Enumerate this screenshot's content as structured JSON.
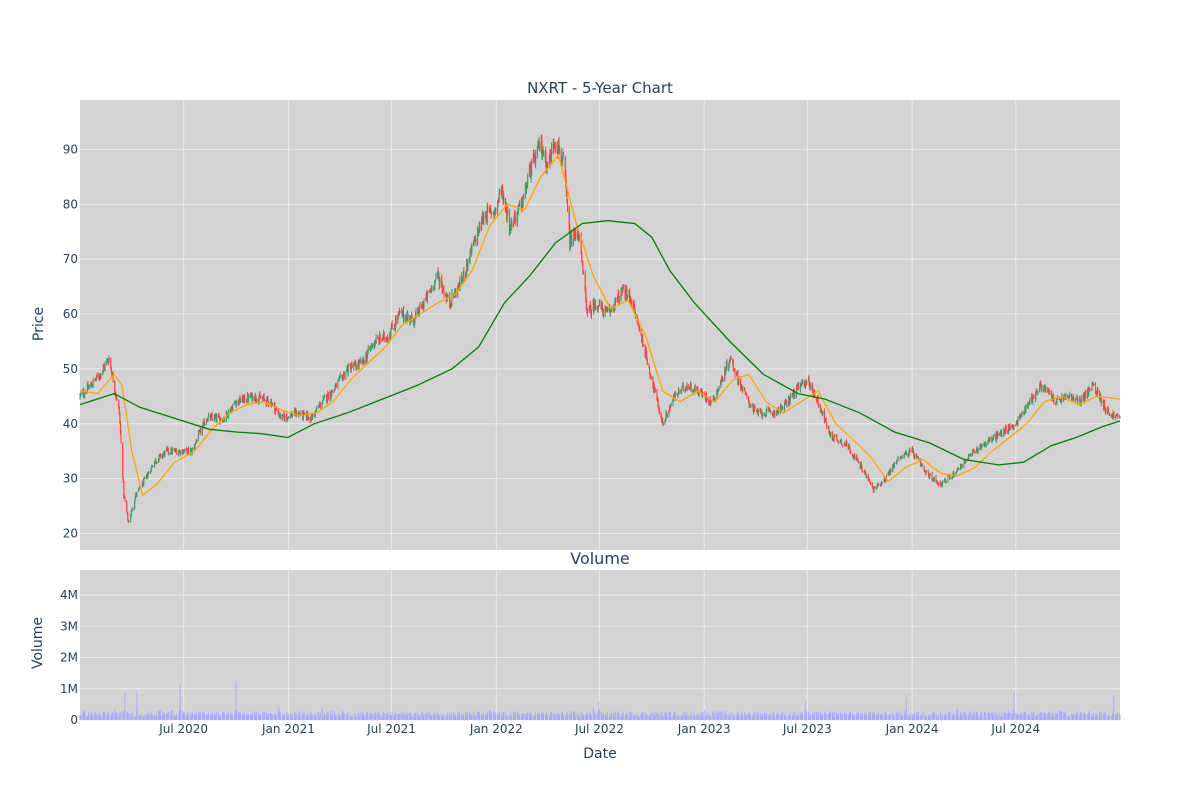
{
  "chart_data": [
    {
      "type": "candlestick",
      "title": "NXRT - 5-Year Chart",
      "ylabel": "Price",
      "ylim": [
        17,
        99
      ],
      "yticks": [
        20,
        30,
        40,
        50,
        60,
        70,
        80,
        90
      ],
      "x_range": [
        "2020-01-01",
        "2024-12-31"
      ],
      "xticks": [
        {
          "date": "2020-07-01",
          "label": "Jul 2020"
        },
        {
          "date": "2021-01-01",
          "label": "Jan 2021"
        },
        {
          "date": "2021-07-01",
          "label": "Jul 2021"
        },
        {
          "date": "2022-01-01",
          "label": "Jan 2022"
        },
        {
          "date": "2022-07-01",
          "label": "Jul 2022"
        },
        {
          "date": "2023-01-01",
          "label": "Jan 2023"
        },
        {
          "date": "2023-07-01",
          "label": "Jul 2023"
        },
        {
          "date": "2024-01-01",
          "label": "Jan 2024"
        },
        {
          "date": "2024-07-01",
          "label": "Jul 2024"
        }
      ],
      "close_path": [
        [
          "2020-01-01",
          45
        ],
        [
          "2020-01-20",
          47
        ],
        [
          "2020-02-05",
          49
        ],
        [
          "2020-02-21",
          52
        ],
        [
          "2020-03-01",
          47
        ],
        [
          "2020-03-10",
          42
        ],
        [
          "2020-03-18",
          27
        ],
        [
          "2020-03-26",
          22
        ],
        [
          "2020-04-08",
          27
        ],
        [
          "2020-04-25",
          30
        ],
        [
          "2020-05-10",
          33
        ],
        [
          "2020-06-01",
          35
        ],
        [
          "2020-06-25",
          35
        ],
        [
          "2020-07-15",
          35
        ],
        [
          "2020-08-10",
          41
        ],
        [
          "2020-09-10",
          41
        ],
        [
          "2020-10-01",
          44
        ],
        [
          "2020-11-01",
          45
        ],
        [
          "2020-12-01",
          44
        ],
        [
          "2020-12-20",
          41
        ],
        [
          "2021-01-15",
          42
        ],
        [
          "2021-02-10",
          41
        ],
        [
          "2021-03-01",
          44
        ],
        [
          "2021-03-20",
          46
        ],
        [
          "2021-04-15",
          50
        ],
        [
          "2021-05-10",
          51
        ],
        [
          "2021-06-01",
          55
        ],
        [
          "2021-06-25",
          56
        ],
        [
          "2021-07-15",
          60
        ],
        [
          "2021-08-10",
          59
        ],
        [
          "2021-09-01",
          63
        ],
        [
          "2021-09-20",
          67
        ],
        [
          "2021-10-10",
          62
        ],
        [
          "2021-11-01",
          66
        ],
        [
          "2021-11-20",
          72
        ],
        [
          "2021-12-10",
          78
        ],
        [
          "2021-12-31",
          79
        ],
        [
          "2022-01-10",
          83
        ],
        [
          "2022-01-25",
          76
        ],
        [
          "2022-02-15",
          80
        ],
        [
          "2022-03-01",
          86
        ],
        [
          "2022-03-20",
          91
        ],
        [
          "2022-04-01",
          87
        ],
        [
          "2022-04-15",
          92
        ],
        [
          "2022-04-30",
          87
        ],
        [
          "2022-05-10",
          73
        ],
        [
          "2022-05-25",
          75
        ],
        [
          "2022-06-10",
          60
        ],
        [
          "2022-06-25",
          62
        ],
        [
          "2022-07-15",
          60
        ],
        [
          "2022-08-10",
          64
        ],
        [
          "2022-08-25",
          63
        ],
        [
          "2022-09-15",
          55
        ],
        [
          "2022-10-01",
          48
        ],
        [
          "2022-10-20",
          40
        ],
        [
          "2022-11-10",
          45
        ],
        [
          "2022-12-01",
          47
        ],
        [
          "2022-12-20",
          46
        ],
        [
          "2023-01-15",
          44
        ],
        [
          "2023-02-01",
          48
        ],
        [
          "2023-02-15",
          52
        ],
        [
          "2023-03-10",
          46
        ],
        [
          "2023-04-01",
          42
        ],
        [
          "2023-05-01",
          42
        ],
        [
          "2023-05-20",
          43
        ],
        [
          "2023-06-10",
          46
        ],
        [
          "2023-07-01",
          48
        ],
        [
          "2023-07-20",
          44
        ],
        [
          "2023-08-10",
          38
        ],
        [
          "2023-09-10",
          36
        ],
        [
          "2023-10-10",
          31
        ],
        [
          "2023-10-25",
          28
        ],
        [
          "2023-11-15",
          30
        ],
        [
          "2023-12-10",
          34
        ],
        [
          "2024-01-01",
          35
        ],
        [
          "2024-01-25",
          31
        ],
        [
          "2024-02-20",
          29
        ],
        [
          "2024-03-15",
          31
        ],
        [
          "2024-04-10",
          34
        ],
        [
          "2024-05-01",
          36
        ],
        [
          "2024-06-01",
          38
        ],
        [
          "2024-07-01",
          40
        ],
        [
          "2024-07-25",
          44
        ],
        [
          "2024-08-15",
          47
        ],
        [
          "2024-09-10",
          44
        ],
        [
          "2024-10-01",
          45
        ],
        [
          "2024-10-20",
          44
        ],
        [
          "2024-11-15",
          47
        ],
        [
          "2024-12-10",
          42
        ],
        [
          "2024-12-31",
          41
        ]
      ],
      "series": [
        {
          "color": "#ffa500",
          "points": [
            [
              "2020-01-01",
              46
            ],
            [
              "2020-02-01",
              45.5
            ],
            [
              "2020-03-01",
              49
            ],
            [
              "2020-03-15",
              47
            ],
            [
              "2020-04-01",
              35
            ],
            [
              "2020-04-20",
              27
            ],
            [
              "2020-05-15",
              29
            ],
            [
              "2020-06-15",
              33
            ],
            [
              "2020-07-20",
              35
            ],
            [
              "2020-08-20",
              39
            ],
            [
              "2020-09-20",
              42
            ],
            [
              "2020-10-20",
              43.5
            ],
            [
              "2020-11-20",
              44
            ],
            [
              "2020-12-20",
              42.5
            ],
            [
              "2021-01-20",
              41.5
            ],
            [
              "2021-02-20",
              42
            ],
            [
              "2021-03-20",
              44
            ],
            [
              "2021-04-20",
              48
            ],
            [
              "2021-05-20",
              51
            ],
            [
              "2021-06-20",
              54
            ],
            [
              "2021-07-20",
              58
            ],
            [
              "2021-08-20",
              60
            ],
            [
              "2021-09-20",
              62
            ],
            [
              "2021-10-20",
              63.5
            ],
            [
              "2021-11-20",
              68
            ],
            [
              "2021-12-20",
              76
            ],
            [
              "2022-01-20",
              80
            ],
            [
              "2022-02-20",
              79
            ],
            [
              "2022-03-20",
              85
            ],
            [
              "2022-04-20",
              89
            ],
            [
              "2022-05-20",
              77
            ],
            [
              "2022-06-20",
              67
            ],
            [
              "2022-07-20",
              61
            ],
            [
              "2022-08-20",
              62.5
            ],
            [
              "2022-09-20",
              56
            ],
            [
              "2022-10-20",
              46
            ],
            [
              "2022-11-20",
              44
            ],
            [
              "2022-12-20",
              46
            ],
            [
              "2023-01-20",
              44
            ],
            [
              "2023-02-20",
              48
            ],
            [
              "2023-03-20",
              49
            ],
            [
              "2023-04-20",
              44
            ],
            [
              "2023-05-20",
              42
            ],
            [
              "2023-06-20",
              44
            ],
            [
              "2023-07-20",
              46
            ],
            [
              "2023-08-20",
              40
            ],
            [
              "2023-09-20",
              37
            ],
            [
              "2023-10-20",
              34
            ],
            [
              "2023-11-20",
              29.5
            ],
            [
              "2023-12-20",
              32
            ],
            [
              "2024-01-20",
              33.5
            ],
            [
              "2024-02-20",
              31
            ],
            [
              "2024-03-20",
              30.5
            ],
            [
              "2024-04-20",
              32
            ],
            [
              "2024-05-20",
              35
            ],
            [
              "2024-06-20",
              37.5
            ],
            [
              "2024-07-20",
              40
            ],
            [
              "2024-08-20",
              44
            ],
            [
              "2024-09-20",
              45
            ],
            [
              "2024-10-20",
              43.5
            ],
            [
              "2024-11-20",
              45
            ],
            [
              "2024-12-31",
              44.5
            ]
          ]
        },
        {
          "color": "#008000",
          "points": [
            [
              "2020-01-01",
              43.5
            ],
            [
              "2020-03-01",
              45.5
            ],
            [
              "2020-04-15",
              43
            ],
            [
              "2020-06-15",
              41
            ],
            [
              "2020-08-15",
              39
            ],
            [
              "2020-10-01",
              38.5
            ],
            [
              "2020-11-15",
              38.2
            ],
            [
              "2020-12-31",
              37.5
            ],
            [
              "2021-02-15",
              40
            ],
            [
              "2021-04-15",
              42
            ],
            [
              "2021-06-15",
              44.5
            ],
            [
              "2021-08-15",
              47
            ],
            [
              "2021-10-15",
              50
            ],
            [
              "2021-12-01",
              54
            ],
            [
              "2022-01-15",
              62
            ],
            [
              "2022-03-01",
              67
            ],
            [
              "2022-04-15",
              73
            ],
            [
              "2022-06-01",
              76.5
            ],
            [
              "2022-07-15",
              77
            ],
            [
              "2022-09-01",
              76.5
            ],
            [
              "2022-10-01",
              74
            ],
            [
              "2022-11-01",
              68
            ],
            [
              "2022-12-15",
              62
            ],
            [
              "2023-02-15",
              55
            ],
            [
              "2023-04-15",
              49
            ],
            [
              "2023-06-15",
              45.5
            ],
            [
              "2023-08-01",
              44.5
            ],
            [
              "2023-10-01",
              42
            ],
            [
              "2023-12-01",
              38.5
            ],
            [
              "2024-02-01",
              36.5
            ],
            [
              "2024-04-01",
              33.5
            ],
            [
              "2024-06-01",
              32.5
            ],
            [
              "2024-07-15",
              33
            ],
            [
              "2024-09-01",
              36
            ],
            [
              "2024-10-15",
              37.5
            ],
            [
              "2024-12-01",
              39.5
            ],
            [
              "2024-12-31",
              40.5
            ]
          ]
        }
      ],
      "up_color": "#3d9970",
      "down_color": "#ff4136",
      "plot_bg": "#d3d3d3",
      "grid": true
    },
    {
      "type": "bar",
      "title": "Volume",
      "ylabel": "Volume",
      "xlabel": "Date",
      "ylim": [
        0,
        4800000
      ],
      "yticks": [
        {
          "value": 0,
          "label": "0"
        },
        {
          "value": 1000000,
          "label": "1M"
        },
        {
          "value": 2000000,
          "label": "2M"
        },
        {
          "value": 3000000,
          "label": "3M"
        },
        {
          "value": 4000000,
          "label": "4M"
        }
      ],
      "bar_color": "#aaaaff",
      "typical_volume": 200000,
      "spikes": [
        [
          "2020-01-05",
          450000
        ],
        [
          "2020-03-01",
          750000
        ],
        [
          "2020-03-20",
          900000
        ],
        [
          "2020-04-10",
          950000
        ],
        [
          "2020-05-20",
          300000
        ],
        [
          "2020-06-10",
          280000
        ],
        [
          "2020-06-25",
          1150000
        ],
        [
          "2020-10-01",
          1200000
        ],
        [
          "2020-12-15",
          420000
        ],
        [
          "2021-03-01",
          380000
        ],
        [
          "2021-03-20",
          350000
        ],
        [
          "2021-12-20",
          300000
        ],
        [
          "2022-06-20",
          420000
        ],
        [
          "2022-06-30",
          580000
        ],
        [
          "2023-01-01",
          560000
        ],
        [
          "2023-06-28",
          620000
        ],
        [
          "2023-12-22",
          720000
        ],
        [
          "2024-03-20",
          380000
        ],
        [
          "2024-06-28",
          880000
        ],
        [
          "2024-09-15",
          520000
        ],
        [
          "2024-12-20",
          800000
        ]
      ],
      "plot_bg": "#d3d3d3",
      "grid": true
    }
  ]
}
